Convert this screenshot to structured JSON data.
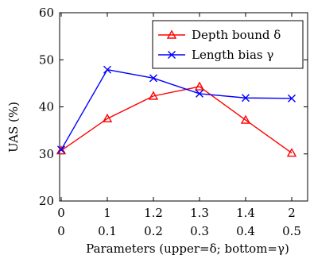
{
  "chart_data": {
    "type": "line",
    "title": "",
    "xlabel": "Parameters (upper=δ; bottom=γ)",
    "ylabel": "UAS (%)",
    "ylim": [
      20,
      60
    ],
    "yticks": [
      "20",
      "30",
      "40",
      "50",
      "60"
    ],
    "x_ticks_upper": [
      "0",
      "1",
      "1.2",
      "1.3",
      "1.4",
      "2"
    ],
    "x_ticks_lower": [
      "0",
      "0.1",
      "0.2",
      "0.3",
      "0.4",
      "0.5"
    ],
    "grid": false,
    "legend_position": "top-right",
    "series": [
      {
        "name": "Depth bound δ",
        "color": "#ff0000",
        "marker": "triangle",
        "values": [
          30.7,
          37.5,
          42.3,
          44.3,
          37.2,
          30.2
        ]
      },
      {
        "name": "Length bias γ",
        "color": "#0000ff",
        "marker": "x",
        "values": [
          30.9,
          47.9,
          46.1,
          42.8,
          41.9,
          41.8
        ]
      }
    ]
  }
}
